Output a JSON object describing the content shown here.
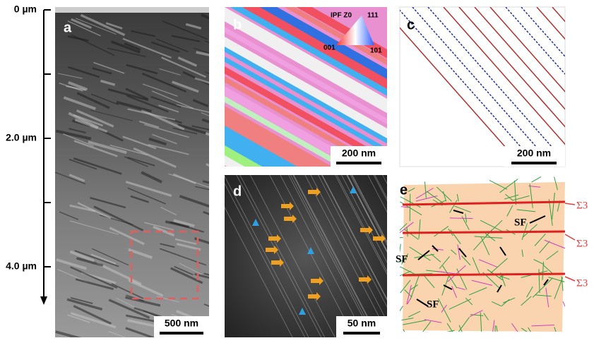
{
  "depth_axis": {
    "labels": [
      "0 µm",
      "2.0 µm",
      "4.0 µm"
    ]
  },
  "panels": [
    {
      "label": "a",
      "scale_bar": "500 nm"
    },
    {
      "label": "b",
      "scale_bar": "200 nm",
      "legend": {
        "title": "IPF Z0",
        "corners": [
          "111",
          "001",
          "101"
        ]
      }
    },
    {
      "label": "c",
      "scale_bar": "200 nm"
    },
    {
      "label": "d",
      "scale_bar": "50 nm"
    },
    {
      "label": "e",
      "annotations": [
        "SF",
        "SF",
        "SF"
      ],
      "boundaries": [
        "Σ3",
        "Σ3",
        "Σ3"
      ]
    }
  ]
}
